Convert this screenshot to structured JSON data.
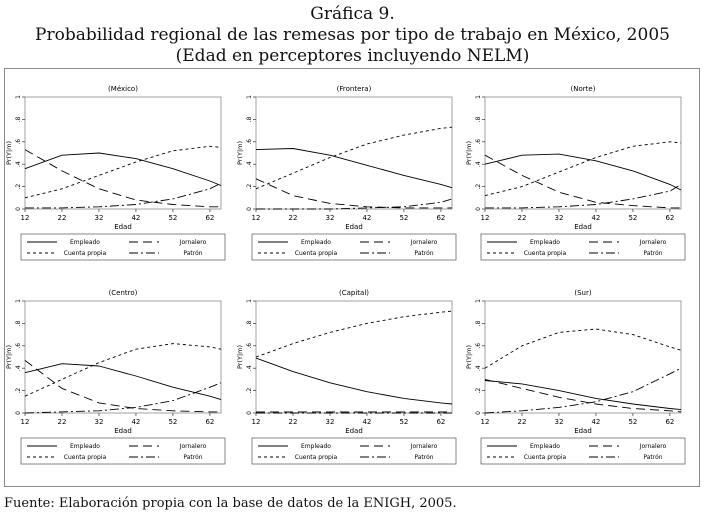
{
  "header": {
    "label": "Gráfica 9.",
    "title": "Probabilidad regional de las remesas por tipo de trabajo en México, 2005",
    "subtitle": "(Edad en perceptores incluyendo NELM)"
  },
  "footer": {
    "source": "Fuente: Elaboración propia con la base de datos de la ENIGH, 2005."
  },
  "chart_data": [
    {
      "type": "line",
      "title": "(México)",
      "xlabel": "Edad",
      "ylabel": "Pr(Y|m)",
      "x_ticks": [
        12,
        22,
        32,
        42,
        52,
        62
      ],
      "y_ticks": [
        "0",
        ".2",
        ".4",
        ".6",
        ".8",
        "1"
      ],
      "xlim": [
        12,
        65
      ],
      "ylim": [
        0,
        1
      ],
      "grid": false,
      "legend": "bottom",
      "x": [
        12,
        22,
        32,
        42,
        52,
        62,
        65
      ],
      "series": [
        {
          "name": "Empleado",
          "dash": "solid",
          "values": [
            0.36,
            0.48,
            0.5,
            0.45,
            0.36,
            0.25,
            0.21
          ]
        },
        {
          "name": "Jornalero",
          "dash": "long",
          "values": [
            0.53,
            0.34,
            0.18,
            0.08,
            0.04,
            0.02,
            0.02
          ]
        },
        {
          "name": "Cuenta propia",
          "dash": "short",
          "values": [
            0.1,
            0.18,
            0.3,
            0.42,
            0.52,
            0.56,
            0.55
          ]
        },
        {
          "name": "Patrón",
          "dash": "dashdot",
          "values": [
            0.01,
            0.01,
            0.02,
            0.04,
            0.09,
            0.18,
            0.23
          ]
        }
      ]
    },
    {
      "type": "line",
      "title": "(Frontera)",
      "xlabel": "Edad",
      "ylabel": "Pr(Y|m)",
      "x_ticks": [
        12,
        22,
        32,
        42,
        52,
        62
      ],
      "y_ticks": [
        "0",
        ".2",
        ".4",
        ".6",
        ".8",
        "1"
      ],
      "xlim": [
        12,
        65
      ],
      "ylim": [
        0,
        1
      ],
      "grid": false,
      "legend": "bottom",
      "x": [
        12,
        22,
        32,
        42,
        52,
        62,
        65
      ],
      "series": [
        {
          "name": "Empleado",
          "dash": "solid",
          "values": [
            0.53,
            0.54,
            0.48,
            0.39,
            0.3,
            0.22,
            0.19
          ]
        },
        {
          "name": "Jornalero",
          "dash": "long",
          "values": [
            0.27,
            0.12,
            0.05,
            0.02,
            0.01,
            0.01,
            0.01
          ]
        },
        {
          "name": "Cuenta propia",
          "dash": "short",
          "values": [
            0.18,
            0.32,
            0.46,
            0.58,
            0.66,
            0.72,
            0.73
          ]
        },
        {
          "name": "Patrón",
          "dash": "dashdot",
          "values": [
            0.0,
            0.0,
            0.0,
            0.01,
            0.02,
            0.06,
            0.09
          ]
        }
      ]
    },
    {
      "type": "line",
      "title": "(Norte)",
      "xlabel": "Edad",
      "ylabel": "Pr(Y|m)",
      "x_ticks": [
        12,
        22,
        32,
        42,
        52,
        62
      ],
      "y_ticks": [
        "0",
        ".2",
        ".4",
        ".6",
        ".8",
        "1"
      ],
      "xlim": [
        12,
        65
      ],
      "ylim": [
        0,
        1
      ],
      "grid": false,
      "legend": "bottom",
      "x": [
        12,
        22,
        32,
        42,
        52,
        62,
        65
      ],
      "series": [
        {
          "name": "Empleado",
          "dash": "solid",
          "values": [
            0.4,
            0.48,
            0.49,
            0.43,
            0.34,
            0.22,
            0.17
          ]
        },
        {
          "name": "Jornalero",
          "dash": "long",
          "values": [
            0.48,
            0.3,
            0.15,
            0.06,
            0.03,
            0.01,
            0.01
          ]
        },
        {
          "name": "Cuenta propia",
          "dash": "short",
          "values": [
            0.12,
            0.2,
            0.33,
            0.46,
            0.56,
            0.6,
            0.59
          ]
        },
        {
          "name": "Patrón",
          "dash": "dashdot",
          "values": [
            0.01,
            0.01,
            0.02,
            0.04,
            0.09,
            0.16,
            0.22
          ]
        }
      ]
    },
    {
      "type": "line",
      "title": "(Centro)",
      "xlabel": "Edad",
      "ylabel": "Pr(Y|m)",
      "x_ticks": [
        12,
        22,
        32,
        42,
        52,
        62
      ],
      "y_ticks": [
        "0",
        ".2",
        ".4",
        ".6",
        ".8",
        "1"
      ],
      "xlim": [
        12,
        65
      ],
      "ylim": [
        0,
        1
      ],
      "grid": false,
      "legend": "bottom",
      "x": [
        12,
        22,
        32,
        42,
        52,
        62,
        65
      ],
      "series": [
        {
          "name": "Empleado",
          "dash": "solid",
          "values": [
            0.36,
            0.44,
            0.42,
            0.33,
            0.23,
            0.15,
            0.12
          ]
        },
        {
          "name": "Jornalero",
          "dash": "long",
          "values": [
            0.47,
            0.22,
            0.09,
            0.04,
            0.02,
            0.01,
            0.01
          ]
        },
        {
          "name": "Cuenta propia",
          "dash": "short",
          "values": [
            0.15,
            0.3,
            0.45,
            0.57,
            0.62,
            0.59,
            0.57
          ]
        },
        {
          "name": "Patrón",
          "dash": "dashdot",
          "values": [
            0.0,
            0.01,
            0.02,
            0.05,
            0.11,
            0.23,
            0.27
          ]
        }
      ]
    },
    {
      "type": "line",
      "title": "(Capital)",
      "xlabel": "Edad",
      "ylabel": "Pr(Y|m)",
      "x_ticks": [
        12,
        22,
        32,
        42,
        52,
        62
      ],
      "y_ticks": [
        "0",
        ".2",
        ".4",
        ".6",
        ".8",
        "1"
      ],
      "xlim": [
        12,
        65
      ],
      "ylim": [
        0,
        1
      ],
      "grid": false,
      "legend": "bottom",
      "x": [
        12,
        22,
        32,
        42,
        52,
        62,
        65
      ],
      "series": [
        {
          "name": "Empleado",
          "dash": "solid",
          "values": [
            0.49,
            0.37,
            0.27,
            0.19,
            0.13,
            0.09,
            0.08
          ]
        },
        {
          "name": "Jornalero",
          "dash": "long",
          "values": [
            0.01,
            0.01,
            0.01,
            0.01,
            0.01,
            0.01,
            0.01
          ]
        },
        {
          "name": "Cuenta propia",
          "dash": "short",
          "values": [
            0.5,
            0.62,
            0.72,
            0.8,
            0.86,
            0.9,
            0.91
          ]
        },
        {
          "name": "Patrón",
          "dash": "dashdot",
          "values": [
            0.0,
            0.0,
            0.0,
            0.0,
            0.0,
            0.0,
            0.0
          ]
        }
      ]
    },
    {
      "type": "line",
      "title": "(Sur)",
      "xlabel": "Edad",
      "ylabel": "Pr(Y|m)",
      "x_ticks": [
        12,
        22,
        32,
        42,
        52,
        62
      ],
      "y_ticks": [
        "0",
        ".2",
        ".4",
        ".6",
        ".8",
        "1"
      ],
      "xlim": [
        12,
        65
      ],
      "ylim": [
        0,
        1
      ],
      "grid": false,
      "legend": "bottom",
      "x": [
        12,
        22,
        32,
        42,
        52,
        62,
        65
      ],
      "series": [
        {
          "name": "Empleado",
          "dash": "solid",
          "values": [
            0.29,
            0.26,
            0.2,
            0.13,
            0.08,
            0.04,
            0.03
          ]
        },
        {
          "name": "Jornalero",
          "dash": "long",
          "values": [
            0.3,
            0.22,
            0.14,
            0.08,
            0.04,
            0.02,
            0.01
          ]
        },
        {
          "name": "Cuenta propia",
          "dash": "short",
          "values": [
            0.4,
            0.6,
            0.72,
            0.75,
            0.7,
            0.59,
            0.56
          ]
        },
        {
          "name": "Patrón",
          "dash": "dashdot",
          "values": [
            0.0,
            0.02,
            0.05,
            0.1,
            0.19,
            0.35,
            0.4
          ]
        }
      ]
    }
  ]
}
